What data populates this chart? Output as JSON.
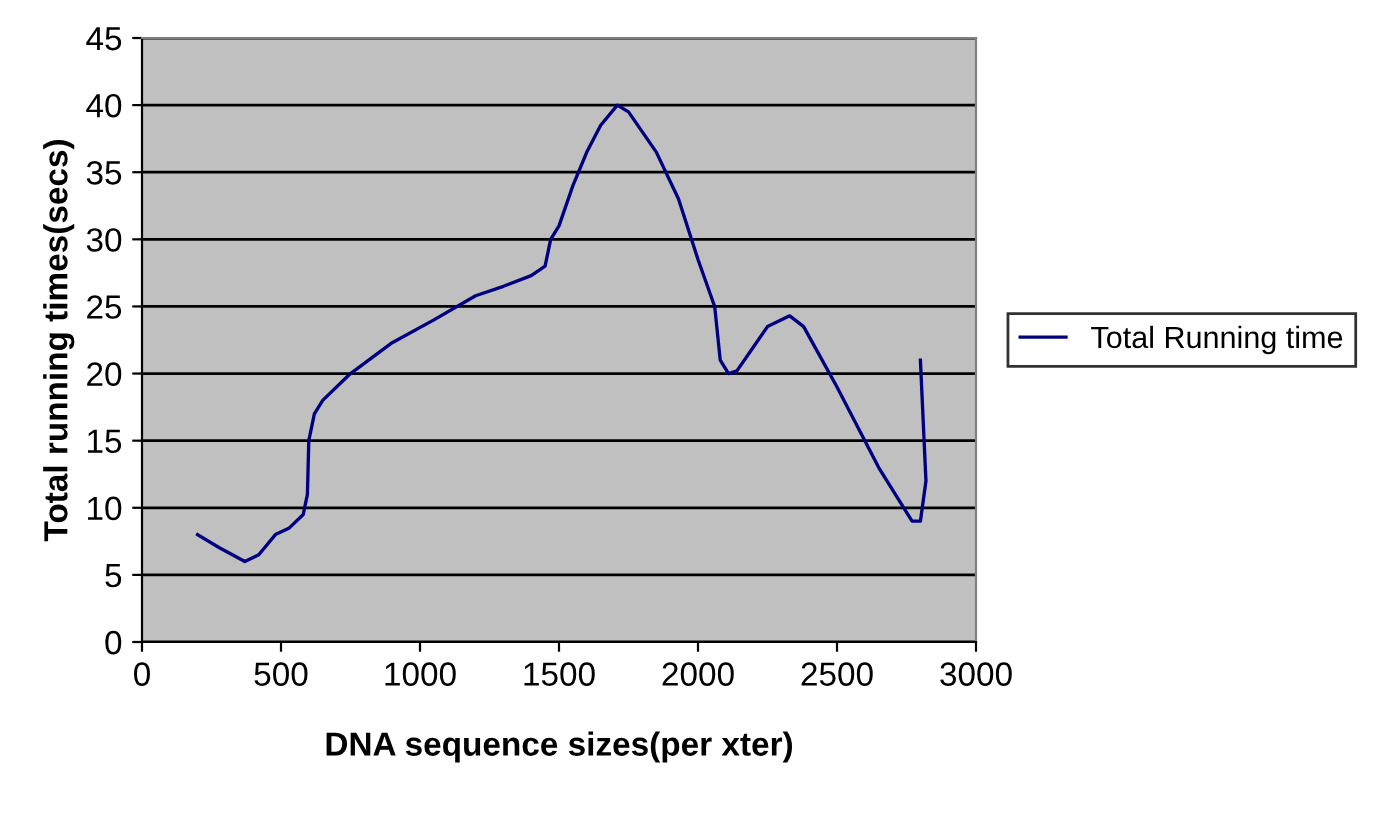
{
  "chart_data": {
    "type": "line",
    "xlabel": "DNA sequence sizes(per xter)",
    "ylabel": "Total running times(secs)",
    "series": [
      {
        "name": "Total Running time",
        "color": "#000080",
        "x": [
          200,
          280,
          370,
          420,
          480,
          530,
          580,
          595,
          600,
          620,
          650,
          750,
          900,
          1050,
          1200,
          1300,
          1400,
          1450,
          1470,
          1500,
          1550,
          1600,
          1650,
          1710,
          1750,
          1850,
          1930,
          2000,
          2060,
          2080,
          2110,
          2140,
          2200,
          2250,
          2330,
          2380,
          2500,
          2650,
          2770,
          2800,
          2820,
          2800
        ],
        "values": [
          8,
          7,
          6,
          6.5,
          8,
          8.5,
          9.5,
          11,
          15,
          17,
          18,
          20,
          22.3,
          24,
          25.8,
          26.5,
          27.3,
          28,
          30,
          31,
          34,
          36.5,
          38.5,
          40,
          39.5,
          36.5,
          33,
          28.5,
          25,
          21,
          20,
          20.2,
          22,
          23.5,
          24.3,
          23.5,
          19,
          13,
          9,
          9,
          12,
          21
        ]
      }
    ],
    "xlim": [
      0,
      3000
    ],
    "xticks": [
      0,
      500,
      1000,
      1500,
      2000,
      2500,
      3000
    ],
    "ylim": [
      0,
      45
    ],
    "yticks": [
      0,
      5,
      10,
      15,
      20,
      25,
      30,
      35,
      40,
      45
    ],
    "grid": "y",
    "legend": "right",
    "marker": "none",
    "line_style": "solid"
  }
}
